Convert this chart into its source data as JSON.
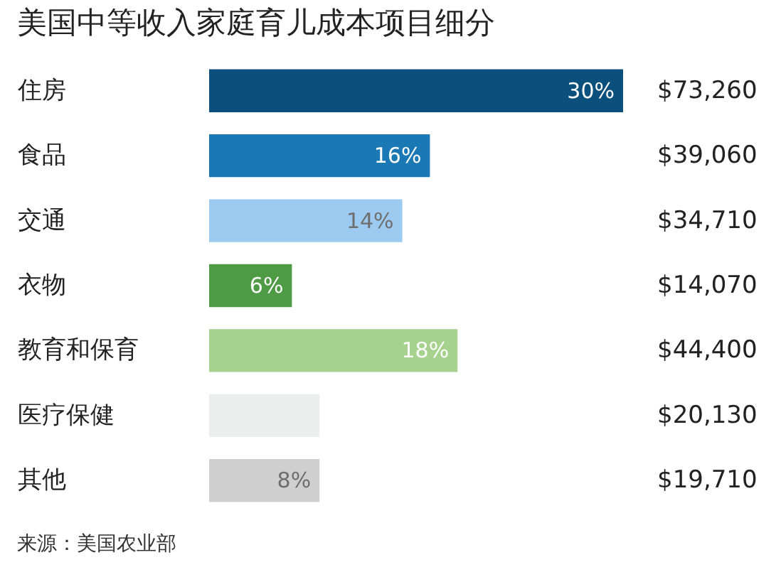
{
  "chart_data": {
    "type": "bar",
    "orientation": "horizontal",
    "title": "美国中等收入家庭育儿成本项目细分",
    "categories": [
      "住房",
      "食品",
      "交通",
      "衣物",
      "教育和保育",
      "医疗保健",
      "其他"
    ],
    "values": [
      30,
      16,
      14,
      6,
      18,
      8,
      8
    ],
    "value_labels": [
      "30%",
      "16%",
      "14%",
      "6%",
      "18%",
      null,
      "8%"
    ],
    "colors": [
      "#0b4f7c",
      "#1a78b4",
      "#9ccaf0",
      "#4e9a45",
      "#a6d28e",
      "#eceeee",
      "#cfcfcf"
    ],
    "annotations": [
      "$73,260",
      "$39,060",
      "$34,710",
      "$14,070",
      "$44,400",
      "$20,130",
      "$19,710",
      "来源：美国农业部"
    ],
    "grid": false
  }
}
